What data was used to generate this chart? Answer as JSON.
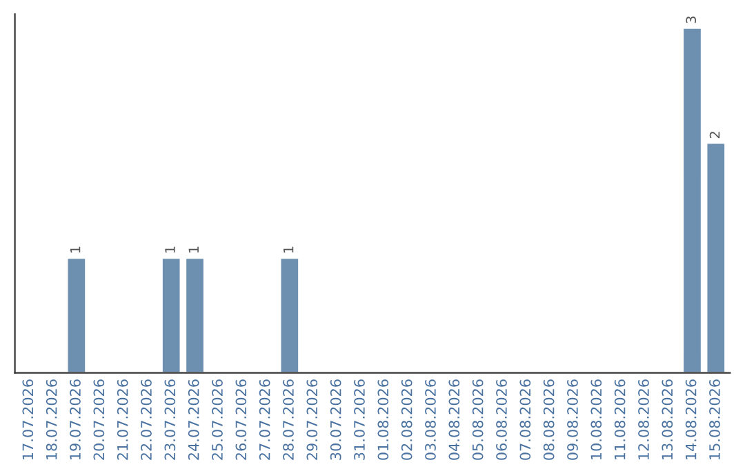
{
  "chart_data": {
    "type": "bar",
    "categories": [
      "17.07.2026",
      "18.07.2026",
      "19.07.2026",
      "20.07.2026",
      "21.07.2026",
      "22.07.2026",
      "23.07.2026",
      "24.07.2026",
      "25.07.2026",
      "26.07.2026",
      "27.07.2026",
      "28.07.2026",
      "29.07.2026",
      "30.07.2026",
      "31.07.2026",
      "01.08.2026",
      "02.08.2026",
      "03.08.2026",
      "04.08.2026",
      "05.08.2026",
      "06.08.2026",
      "07.08.2026",
      "08.08.2026",
      "09.08.2026",
      "10.08.2026",
      "11.08.2026",
      "12.08.2026",
      "13.08.2026",
      "14.08.2026",
      "15.08.2026"
    ],
    "values": [
      null,
      null,
      1,
      null,
      null,
      null,
      1,
      1,
      null,
      null,
      null,
      1,
      null,
      null,
      null,
      null,
      null,
      null,
      null,
      null,
      null,
      null,
      null,
      null,
      null,
      null,
      null,
      null,
      3,
      2
    ],
    "value_labels": [
      null,
      null,
      "1",
      null,
      null,
      null,
      "1",
      "1",
      null,
      null,
      null,
      "1",
      null,
      null,
      null,
      null,
      null,
      null,
      null,
      null,
      null,
      null,
      null,
      null,
      null,
      null,
      null,
      null,
      "3",
      "2"
    ],
    "color": "#6d8fb0",
    "grid": false,
    "legend": false
  }
}
